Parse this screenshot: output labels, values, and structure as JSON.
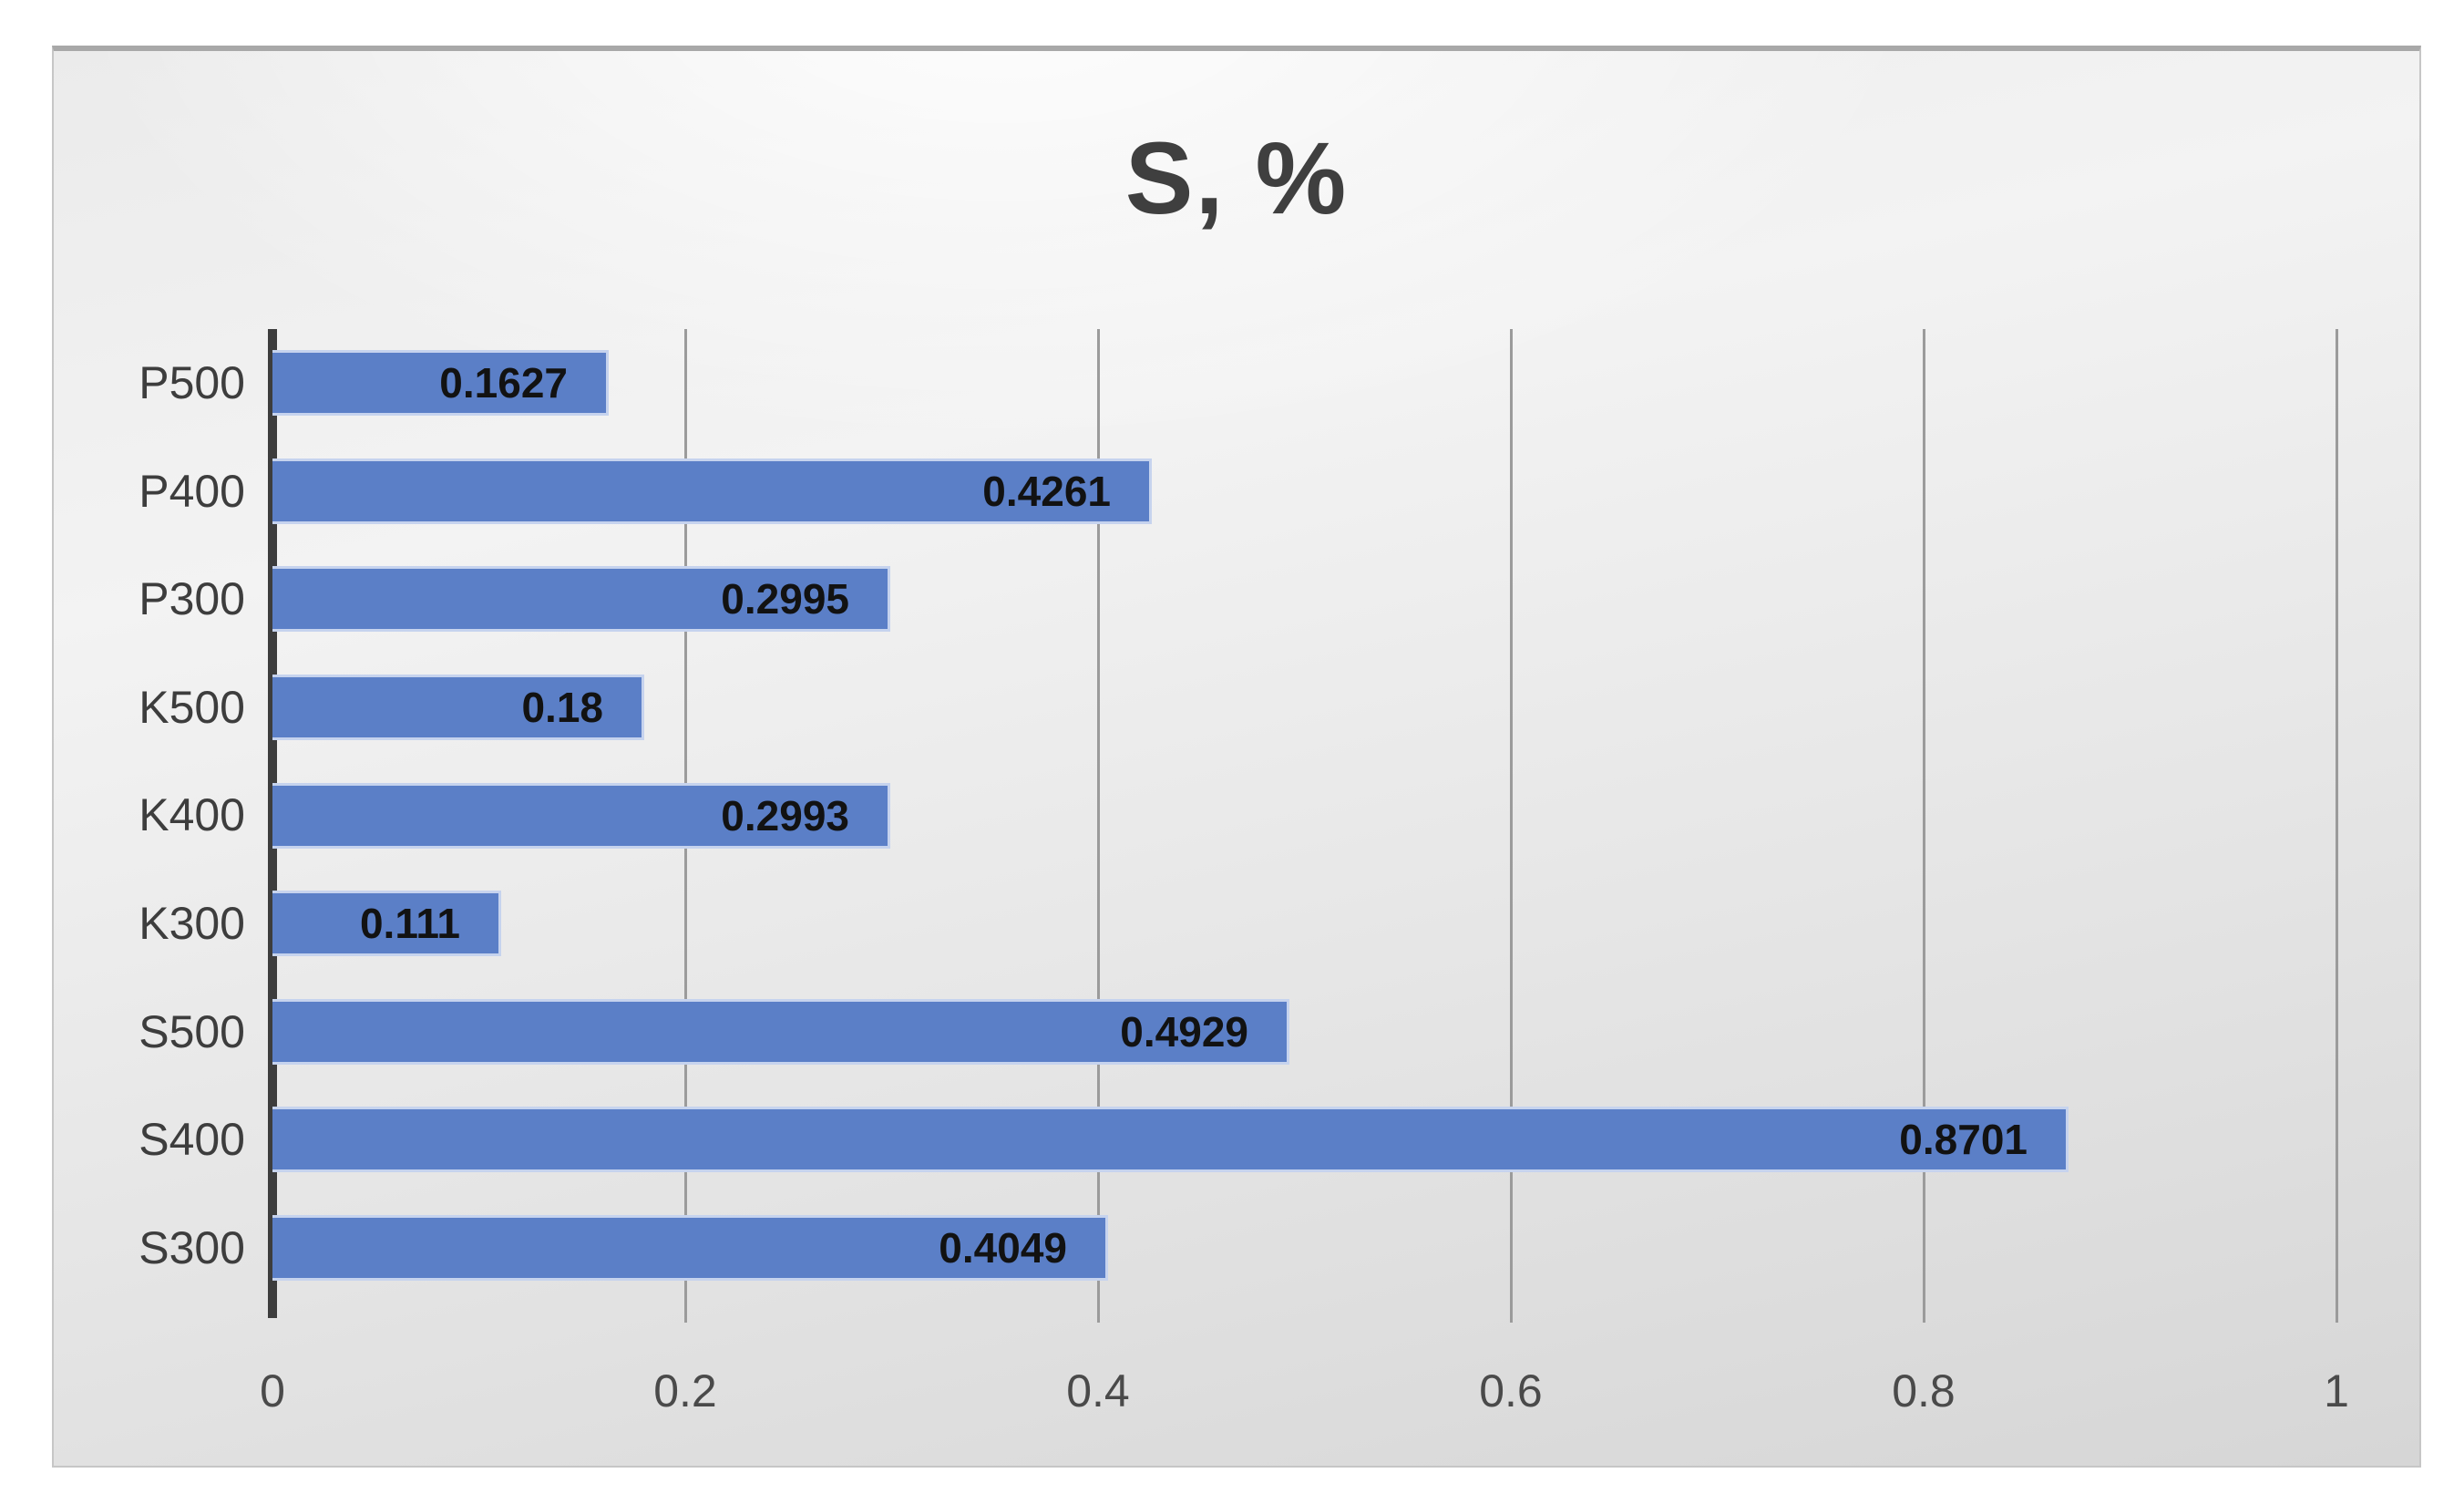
{
  "chart": {
    "background_color": "#e9e9e9",
    "frame_border_color": "#a8a8a8",
    "title_color": "#3f3f3f",
    "gridline_color": "#9b9b9b",
    "axis_line_color": "#3d3d3d",
    "category_label_color": "#3d3d3d",
    "tick_label_color": "#4a4a4a"
  },
  "chart_data": {
    "type": "bar",
    "orientation": "horizontal",
    "title": "S, %",
    "categories": [
      "P500",
      "P400",
      "P300",
      "K500",
      "K400",
      "K300",
      "S500",
      "S400",
      "S300"
    ],
    "values": [
      0.1627,
      0.4261,
      0.2995,
      0.18,
      0.2993,
      0.111,
      0.4929,
      0.8701,
      0.4049
    ],
    "data_labels": [
      "0.1627",
      "0.4261",
      "0.2995",
      "0.18",
      "0.2993",
      "0.111",
      "0.4929",
      "0.8701",
      "0.4049"
    ],
    "x_ticks": [
      0,
      0.2,
      0.4,
      0.6,
      0.8,
      1
    ],
    "x_tick_labels": [
      "0",
      "0.2",
      "0.4",
      "0.6",
      "0.8",
      "1"
    ],
    "xlim": [
      0,
      1
    ],
    "grid": true,
    "legend": false,
    "bar_color": "#5b7fc7",
    "bar_edge_color": "#c6d3ee",
    "data_label_color": "#121212"
  }
}
